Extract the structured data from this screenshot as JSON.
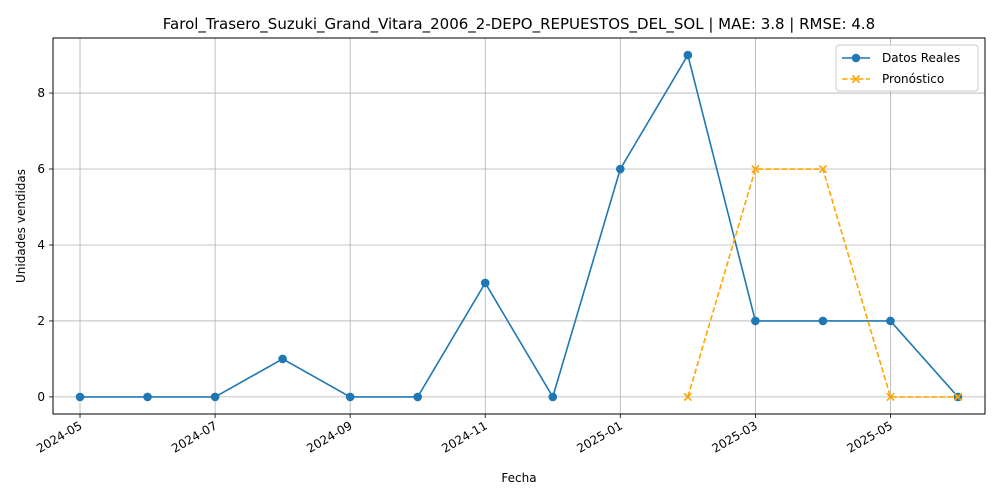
{
  "chart_data": {
    "type": "line",
    "title": "Farol_Trasero_Suzuki_Grand_Vitara_2006_2-DEPO_REPUESTOS_DEL_SOL | MAE: 3.8 | RMSE: 4.8",
    "xlabel": "Fecha",
    "ylabel": "Unidades vendidas",
    "grid": true,
    "legend_position": "top-right",
    "x_ticks": [
      "2024-05",
      "2024-07",
      "2024-09",
      "2024-11",
      "2025-01",
      "2025-03",
      "2025-05"
    ],
    "y_ticks": [
      0,
      2,
      4,
      6,
      8
    ],
    "xlim_months": [
      -0.4,
      13.4
    ],
    "ylim": [
      -0.45,
      9.45
    ],
    "series": [
      {
        "name": "Datos Reales",
        "color": "#1f77b4",
        "style": "solid",
        "marker": "circle",
        "x": [
          "2024-05",
          "2024-06",
          "2024-07",
          "2024-08",
          "2024-09",
          "2024-10",
          "2024-11",
          "2024-12",
          "2025-01",
          "2025-02",
          "2025-03",
          "2025-04",
          "2025-05",
          "2025-06"
        ],
        "values": [
          0,
          0,
          0,
          1,
          0,
          0,
          3,
          0,
          6,
          9,
          2,
          2,
          2,
          0
        ]
      },
      {
        "name": "Pronóstico",
        "color": "#ffa500",
        "style": "dashed",
        "marker": "x",
        "x": [
          "2025-02",
          "2025-03",
          "2025-04",
          "2025-05",
          "2025-06"
        ],
        "values": [
          0,
          6,
          6,
          0,
          0
        ]
      }
    ]
  }
}
